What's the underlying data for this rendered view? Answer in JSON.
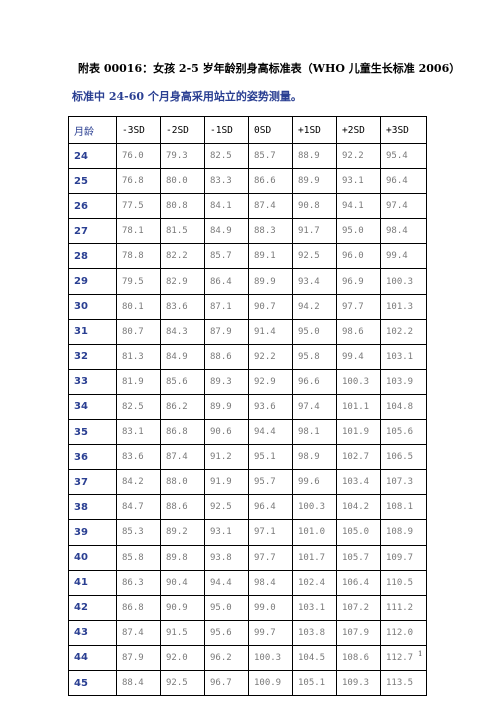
{
  "title": "附表 00016：女孩 2-5 岁年龄别身高标准表（WHO 儿童生长标准 2006）",
  "subtitle": "标准中 24-60 个月身高采用站立的姿势测量。",
  "table": {
    "headers": [
      "月龄",
      "-3SD",
      "-2SD",
      "-1SD",
      "0SD",
      "+1SD",
      "+2SD",
      "+3SD"
    ],
    "rows": [
      [
        "24",
        "76.0",
        "79.3",
        "82.5",
        "85.7",
        "88.9",
        "92.2",
        "95.4"
      ],
      [
        "25",
        "76.8",
        "80.0",
        "83.3",
        "86.6",
        "89.9",
        "93.1",
        "96.4"
      ],
      [
        "26",
        "77.5",
        "80.8",
        "84.1",
        "87.4",
        "90.8",
        "94.1",
        "97.4"
      ],
      [
        "27",
        "78.1",
        "81.5",
        "84.9",
        "88.3",
        "91.7",
        "95.0",
        "98.4"
      ],
      [
        "28",
        "78.8",
        "82.2",
        "85.7",
        "89.1",
        "92.5",
        "96.0",
        "99.4"
      ],
      [
        "29",
        "79.5",
        "82.9",
        "86.4",
        "89.9",
        "93.4",
        "96.9",
        "100.3"
      ],
      [
        "30",
        "80.1",
        "83.6",
        "87.1",
        "90.7",
        "94.2",
        "97.7",
        "101.3"
      ],
      [
        "31",
        "80.7",
        "84.3",
        "87.9",
        "91.4",
        "95.0",
        "98.6",
        "102.2"
      ],
      [
        "32",
        "81.3",
        "84.9",
        "88.6",
        "92.2",
        "95.8",
        "99.4",
        "103.1"
      ],
      [
        "33",
        "81.9",
        "85.6",
        "89.3",
        "92.9",
        "96.6",
        "100.3",
        "103.9"
      ],
      [
        "34",
        "82.5",
        "86.2",
        "89.9",
        "93.6",
        "97.4",
        "101.1",
        "104.8"
      ],
      [
        "35",
        "83.1",
        "86.8",
        "90.6",
        "94.4",
        "98.1",
        "101.9",
        "105.6"
      ],
      [
        "36",
        "83.6",
        "87.4",
        "91.2",
        "95.1",
        "98.9",
        "102.7",
        "106.5"
      ],
      [
        "37",
        "84.2",
        "88.0",
        "91.9",
        "95.7",
        "99.6",
        "103.4",
        "107.3"
      ],
      [
        "38",
        "84.7",
        "88.6",
        "92.5",
        "96.4",
        "100.3",
        "104.2",
        "108.1"
      ],
      [
        "39",
        "85.3",
        "89.2",
        "93.1",
        "97.1",
        "101.0",
        "105.0",
        "108.9"
      ],
      [
        "40",
        "85.8",
        "89.8",
        "93.8",
        "97.7",
        "101.7",
        "105.7",
        "109.7"
      ],
      [
        "41",
        "86.3",
        "90.4",
        "94.4",
        "98.4",
        "102.4",
        "106.4",
        "110.5"
      ],
      [
        "42",
        "86.8",
        "90.9",
        "95.0",
        "99.0",
        "103.1",
        "107.2",
        "111.2"
      ],
      [
        "43",
        "87.4",
        "91.5",
        "95.6",
        "99.7",
        "103.8",
        "107.9",
        "112.0"
      ],
      [
        "44",
        "87.9",
        "92.0",
        "96.2",
        "100.3",
        "104.5",
        "108.6",
        "112.7"
      ],
      [
        "45",
        "88.4",
        "92.5",
        "96.7",
        "100.9",
        "105.1",
        "109.3",
        "113.5"
      ]
    ]
  },
  "page_number": "1"
}
